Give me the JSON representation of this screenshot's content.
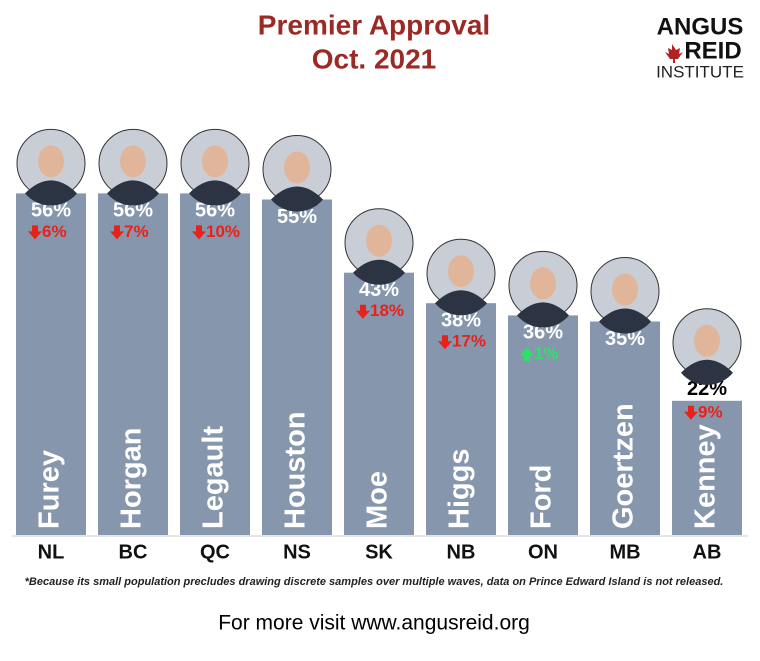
{
  "logo": {
    "line1": "ANGUS",
    "line2": "REID",
    "line3": "INSTITUTE"
  },
  "chart_data": {
    "type": "bar",
    "title": "Premier Approval",
    "subtitle": "Oct. 2021",
    "categories": [
      "NL",
      "BC",
      "QC",
      "NS",
      "SK",
      "NB",
      "ON",
      "MB",
      "AB"
    ],
    "names": [
      "Furey",
      "Horgan",
      "Legault",
      "Houston",
      "Moe",
      "Higgs",
      "Ford",
      "Goertzen",
      "Kenney"
    ],
    "values": [
      56,
      56,
      56,
      55,
      43,
      38,
      36,
      35,
      22
    ],
    "value_labels": [
      "56%",
      "56%",
      "56%",
      "55%",
      "43%",
      "38%",
      "36%",
      "35%",
      "22%"
    ],
    "changes": [
      -6,
      -7,
      -10,
      null,
      -18,
      -17,
      1,
      null,
      -9
    ],
    "change_labels": [
      "6%",
      "7%",
      "10%",
      null,
      "18%",
      "17%",
      "1%",
      null,
      "9%"
    ],
    "color": "#8696ad",
    "down_color": "#e8221b",
    "up_color": "#2ee06a",
    "ylim": [
      0,
      60
    ],
    "footnote": "*Because its small population precludes drawing discrete samples over multiple waves, data on Prince Edward Island is not released.",
    "footer": "For more visit www.angusreid.org"
  }
}
